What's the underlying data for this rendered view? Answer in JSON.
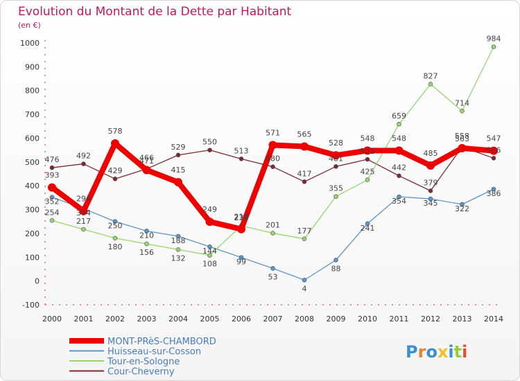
{
  "chart_data": {
    "type": "line",
    "title": "Evolution du Montant de la Dette par Habitant",
    "subtitle": "(en €)",
    "x": [
      "2000",
      "2001",
      "2002",
      "2003",
      "2004",
      "2005",
      "2006",
      "2007",
      "2008",
      "2009",
      "2010",
      "2011",
      "2012",
      "2013",
      "2014"
    ],
    "ylim": [
      -100,
      1000
    ],
    "yticks": [
      -100,
      0,
      100,
      200,
      300,
      400,
      500,
      600,
      700,
      800,
      900,
      1000
    ],
    "grid": false,
    "legend_position": "bottom-left",
    "series": [
      {
        "name": "Cour-Cheverny",
        "color": "#7a2a32",
        "values": [
          476,
          492,
          429,
          471,
          529,
          550,
          513,
          480,
          417,
          481,
          511,
          442,
          379,
          563,
          516
        ]
      },
      {
        "name": "Huisseau-sur-Cosson",
        "color": "#5b95c8",
        "values": [
          352,
          304,
          250,
          210,
          188,
          144,
          99,
          53,
          4,
          88,
          241,
          354,
          345,
          322,
          386
        ]
      },
      {
        "name": "Tour-en-Sologne",
        "color": "#97d46f",
        "values": [
          254,
          217,
          180,
          156,
          132,
          108,
          232,
          201,
          177,
          355,
          425,
          659,
          827,
          714,
          984
        ]
      },
      {
        "name": "MONT-PRèS-CHAMBORD",
        "color": "#ee0000",
        "values": [
          393,
          294,
          578,
          466,
          415,
          249,
          218,
          571,
          565,
          528,
          548,
          548,
          485,
          558,
          547
        ]
      }
    ],
    "legend": [
      "MONT-PRèS-CHAMBORD",
      "Huisseau-sur-Cosson",
      "Tour-en-Sologne",
      "Cour-Cheverny"
    ]
  },
  "logo": {
    "text": "Proxiti"
  }
}
